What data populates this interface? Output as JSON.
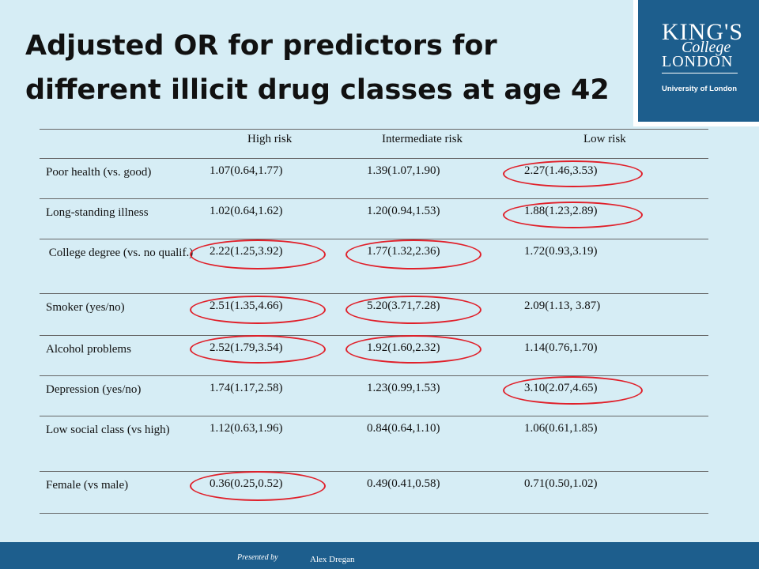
{
  "title_line1": "Adjusted OR for predictors for",
  "title_line2": "different illicit drug classes at age 42",
  "logo": {
    "kings": "KING'S",
    "college": "College",
    "london": "LONDON",
    "university": "University of London"
  },
  "table": {
    "headers": [
      "",
      "High risk",
      "Intermediate risk",
      "Low risk"
    ],
    "rows": [
      {
        "label": "Poor health (vs. good)",
        "high": "1.07(0.64,1.77)",
        "intermediate": "1.39(1.07,1.90)",
        "low": "2.27(1.46,3.53)"
      },
      {
        "label": "Long-standing illness",
        "high": "1.02(0.64,1.62)",
        "intermediate": "1.20(0.94,1.53)",
        "low": "1.88(1.23,2.89)"
      },
      {
        "label": " College degree (vs. no qualif.)",
        "high": "2.22(1.25,3.92)",
        "intermediate": "1.77(1.32,2.36)",
        "low": "1.72(0.93,3.19)"
      },
      {
        "label": "Smoker (yes/no)",
        "high": "2.51(1.35,4.66)",
        "intermediate": "5.20(3.71,7.28)",
        "low": "2.09(1.13, 3.87)"
      },
      {
        "label": "Alcohol problems",
        "high": "2.52(1.79,3.54)",
        "intermediate": "1.92(1.60,2.32)",
        "low": "1.14(0.76,1.70)"
      },
      {
        "label": "Depression (yes/no)",
        "high": "1.74(1.17,2.58)",
        "intermediate": "1.23(0.99,1.53)",
        "low": "3.10(2.07,4.65)"
      },
      {
        "label": "Low social class (vs high)",
        "high": "1.12(0.63,1.96)",
        "intermediate": "0.84(0.64,1.10)",
        "low": "1.06(0.61,1.85)"
      },
      {
        "label": "Female (vs male)",
        "high": "0.36(0.25,0.52)",
        "intermediate": "0.49(0.41,0.58)",
        "low": "0.71(0.50,1.02)"
      }
    ]
  },
  "footer": {
    "presented_by": "Presented by",
    "presenter": "Alex Dregan"
  },
  "colors": {
    "background": "#d6edf5",
    "brand_blue": "#1d5e8d",
    "highlight_ring": "#e0202a"
  }
}
